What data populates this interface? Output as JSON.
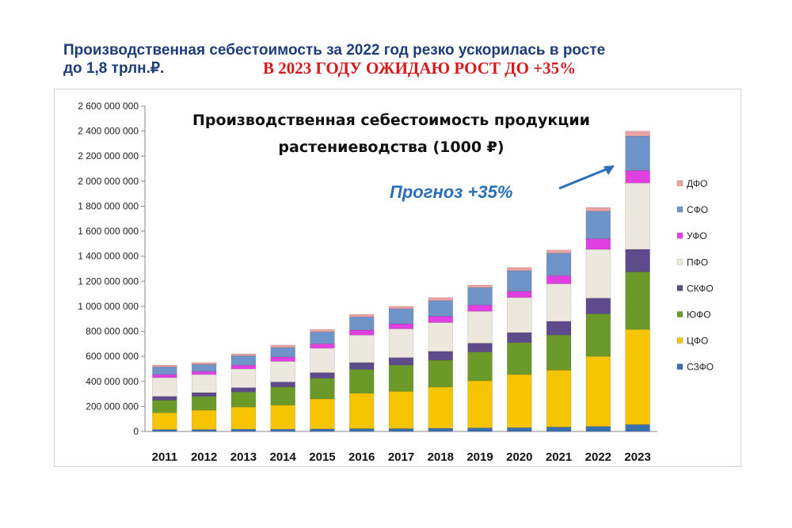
{
  "headline": {
    "line1": "Производственная себестоимость за 2022 год резко ускорилась в росте",
    "line2": "до 1,8 трлн.₽.",
    "accent": "В 2023 ГОДУ ОЖИДАЮ РОСТ ДО +35%"
  },
  "chart_data": {
    "type": "bar",
    "stacked": true,
    "title_line1": "Производственная себестоимость продукции",
    "title_line2": "растениеводства (1000 ₽)",
    "annotation": "Прогноз +35%",
    "ylim": [
      0,
      2600000000
    ],
    "yticks": [
      "0",
      "200 000 000",
      "400 000 000",
      "600 000 000",
      "800 000 000",
      "1 000 000 000",
      "1 200 000 000",
      "1 400 000 000",
      "1 600 000 000",
      "1 800 000 000",
      "2 000 000 000",
      "2 200 000 000",
      "2 400 000 000",
      "2 600 000 000"
    ],
    "categories": [
      "2011",
      "2012",
      "2013",
      "2014",
      "2015",
      "2016",
      "2017",
      "2018",
      "2019",
      "2020",
      "2021",
      "2022",
      "2023"
    ],
    "legend_position": "right",
    "series": [
      {
        "name": "СЗФО",
        "color": "#3a6fb0",
        "values": [
          15000000,
          15000000,
          18000000,
          18000000,
          20000000,
          22000000,
          22000000,
          25000000,
          28000000,
          30000000,
          35000000,
          40000000,
          55000000
        ]
      },
      {
        "name": "ЦФО",
        "color": "#f6c400",
        "values": [
          135000000,
          155000000,
          177000000,
          192000000,
          240000000,
          283000000,
          298000000,
          330000000,
          377000000,
          425000000,
          455000000,
          560000000,
          760000000
        ]
      },
      {
        "name": "ЮФО",
        "color": "#6b9a2a",
        "values": [
          100000000,
          110000000,
          120000000,
          145000000,
          165000000,
          190000000,
          210000000,
          215000000,
          230000000,
          255000000,
          280000000,
          340000000,
          460000000
        ]
      },
      {
        "name": "СКФО",
        "color": "#5e4b8b",
        "values": [
          30000000,
          30000000,
          35000000,
          40000000,
          45000000,
          55000000,
          60000000,
          70000000,
          70000000,
          80000000,
          110000000,
          125000000,
          180000000
        ]
      },
      {
        "name": "ПФО",
        "color": "#ece8de",
        "values": [
          150000000,
          145000000,
          150000000,
          165000000,
          195000000,
          220000000,
          230000000,
          230000000,
          255000000,
          280000000,
          300000000,
          390000000,
          530000000
        ]
      },
      {
        "name": "УФО",
        "color": "#e040e0",
        "values": [
          25000000,
          25000000,
          30000000,
          35000000,
          35000000,
          40000000,
          40000000,
          50000000,
          50000000,
          50000000,
          65000000,
          85000000,
          100000000
        ]
      },
      {
        "name": "СФО",
        "color": "#6f94c9",
        "values": [
          60000000,
          55000000,
          75000000,
          75000000,
          95000000,
          105000000,
          120000000,
          125000000,
          140000000,
          165000000,
          180000000,
          220000000,
          275000000
        ]
      },
      {
        "name": "ДФО",
        "color": "#e9a3a3",
        "values": [
          15000000,
          15000000,
          15000000,
          20000000,
          20000000,
          20000000,
          20000000,
          25000000,
          20000000,
          25000000,
          25000000,
          30000000,
          40000000
        ]
      }
    ]
  }
}
